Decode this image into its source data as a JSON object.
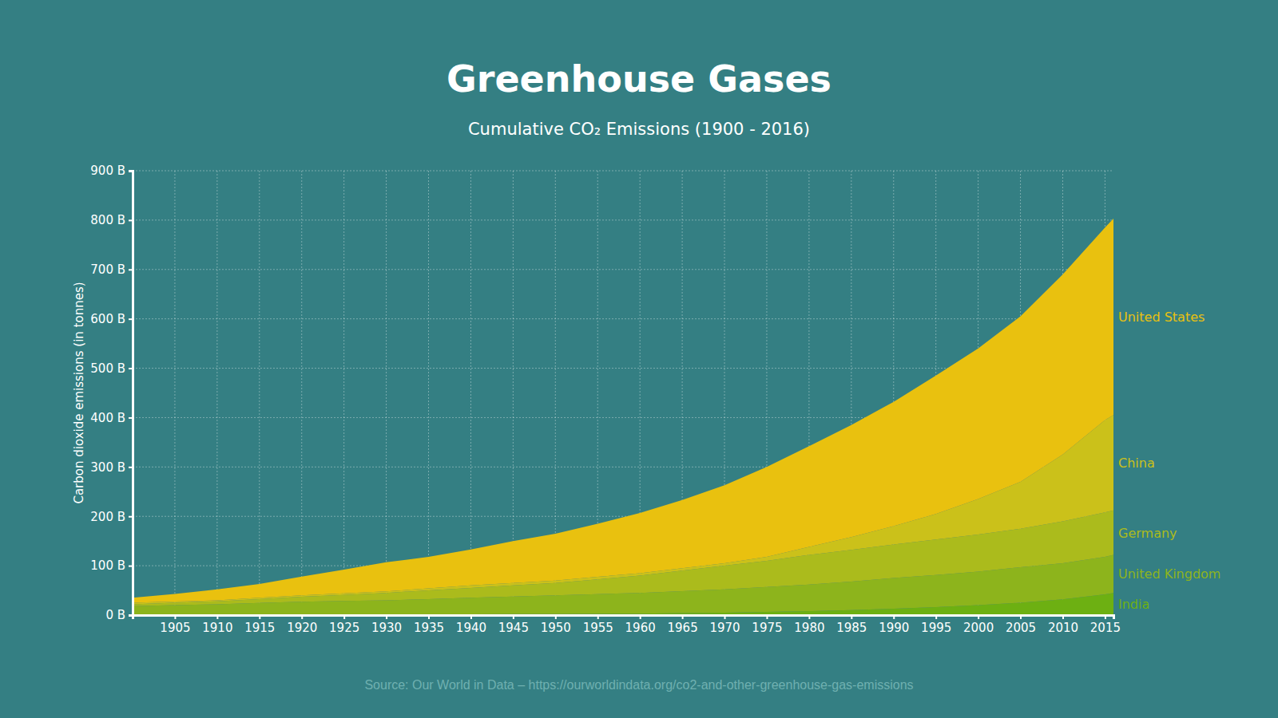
{
  "chart_data": {
    "type": "area",
    "title": "Greenhouse Gases",
    "subtitle": "Cumulative CO₂ Emissions (1900 - 2016)",
    "y_label": "Carbon dioxide emissions (in tonnes)",
    "source": "Source: Our World in Data – https://ourworldindata.org/co2-and-other-greenhouse-gas-emissions",
    "stacked": true,
    "grid": true,
    "x": [
      1900,
      1905,
      1910,
      1915,
      1920,
      1925,
      1930,
      1935,
      1940,
      1945,
      1950,
      1955,
      1960,
      1965,
      1970,
      1975,
      1980,
      1985,
      1990,
      1995,
      2000,
      2005,
      2010,
      2015,
      2016
    ],
    "xlim": [
      1900,
      2016
    ],
    "xticks": [
      1905,
      1910,
      1915,
      1920,
      1925,
      1930,
      1935,
      1940,
      1945,
      1950,
      1955,
      1960,
      1965,
      1970,
      1975,
      1980,
      1985,
      1990,
      1995,
      2000,
      2005,
      2010,
      2015
    ],
    "ylim": [
      0,
      900
    ],
    "yticks": [
      {
        "value": 0,
        "label": "0 B"
      },
      {
        "value": 100,
        "label": "100 B"
      },
      {
        "value": 200,
        "label": "200 B"
      },
      {
        "value": 300,
        "label": "300 B"
      },
      {
        "value": 400,
        "label": "400 B"
      },
      {
        "value": 500,
        "label": "500 B"
      },
      {
        "value": 600,
        "label": "600 B"
      },
      {
        "value": 700,
        "label": "700 B"
      },
      {
        "value": 800,
        "label": "800 B"
      },
      {
        "value": 900,
        "label": "900 B"
      }
    ],
    "series": [
      {
        "name": "India",
        "color": "#6db012",
        "values": [
          0.5,
          0.6,
          0.7,
          0.8,
          1,
          1.2,
          1.4,
          1.6,
          1.8,
          2,
          2.2,
          2.6,
          3,
          4,
          5,
          6.5,
          8,
          10,
          13,
          16,
          20,
          25,
          32,
          42,
          45
        ]
      },
      {
        "name": "United Kingdom",
        "color": "#8db41c",
        "values": [
          17.5,
          19.4,
          21.3,
          23.7,
          26,
          27.3,
          28.6,
          30.9,
          33.2,
          35.5,
          37.8,
          39.9,
          42,
          44.5,
          47,
          50.5,
          54,
          58,
          62,
          65,
          68,
          72,
          73,
          76,
          77
        ]
      },
      {
        "name": "Germany",
        "color": "#abbb1c",
        "values": [
          4,
          5,
          6,
          8,
          10,
          12.5,
          15,
          17.5,
          20,
          22.5,
          25,
          30,
          35,
          41.5,
          48,
          53,
          60,
          64,
          68,
          72,
          75,
          78,
          85,
          90,
          90
        ]
      },
      {
        "name": "China",
        "color": "#cbc11a",
        "values": [
          3,
          2.5,
          2,
          2.5,
          3,
          3,
          3,
          4,
          5,
          5,
          5,
          5,
          5,
          5,
          5,
          8,
          16,
          26,
          37,
          52,
          72,
          95,
          135,
          187,
          193
        ]
      },
      {
        "name": "United States",
        "color": "#e9c10f",
        "values": [
          10,
          15.5,
          22,
          28,
          38,
          48,
          59,
          64,
          73,
          85,
          95,
          107.5,
          122,
          138,
          158,
          182,
          204,
          227,
          252,
          280,
          305,
          335,
          365,
          390,
          398
        ]
      }
    ]
  }
}
